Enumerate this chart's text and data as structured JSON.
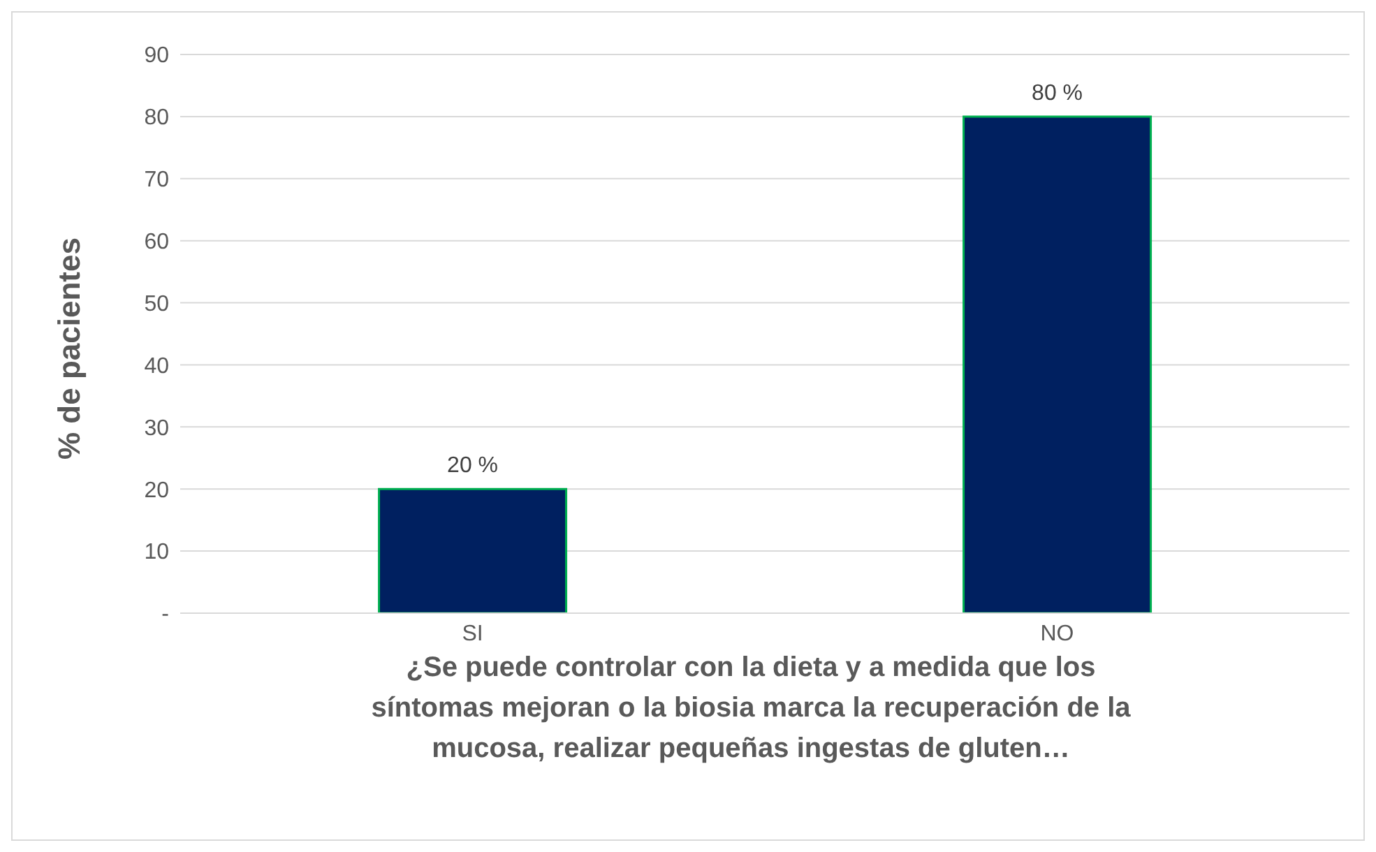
{
  "chart_data": {
    "type": "bar",
    "xlabel": "¿Se puede controlar con la dieta y a medida que los síntomas mejoran o la biosia marca la recuperación de la mucosa, realizar pequeñas ingestas de gluten…",
    "ylabel": "% de pacientes",
    "categories": [
      "SI",
      "NO"
    ],
    "values": [
      20,
      80
    ],
    "color": "#002060",
    "value_labels": [
      "20 %",
      "80 %"
    ],
    "ylim": [
      0,
      90
    ],
    "yticks": [
      {
        "value": 0,
        "label": "-"
      },
      10,
      20,
      30,
      40,
      50,
      60,
      70,
      80,
      90
    ],
    "grid": "y"
  }
}
